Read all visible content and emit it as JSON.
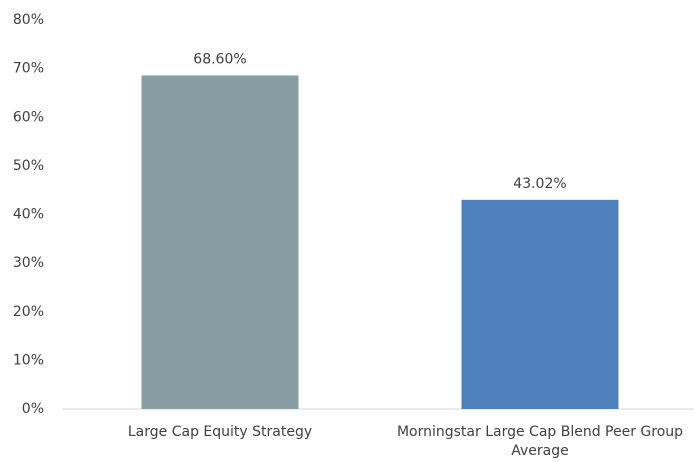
{
  "chart_data": {
    "type": "bar",
    "categories": [
      "Large Cap Equity Strategy",
      "Morningstar Large Cap Blend Peer Group Average"
    ],
    "values": [
      68.6,
      43.02
    ],
    "value_labels": [
      "68.60%",
      "43.02%"
    ],
    "colors": [
      "#879ea3",
      "#4f81bd"
    ],
    "ylim": [
      0,
      80
    ],
    "yticks": [
      {
        "value": 0,
        "label": "0%"
      },
      {
        "value": 10,
        "label": "10%"
      },
      {
        "value": 20,
        "label": "20%"
      },
      {
        "value": 30,
        "label": "30%"
      },
      {
        "value": 40,
        "label": "40%"
      },
      {
        "value": 50,
        "label": "50%"
      },
      {
        "value": 60,
        "label": "60%"
      },
      {
        "value": 70,
        "label": "70%"
      },
      {
        "value": 80,
        "label": "80%"
      }
    ],
    "grid": false
  }
}
